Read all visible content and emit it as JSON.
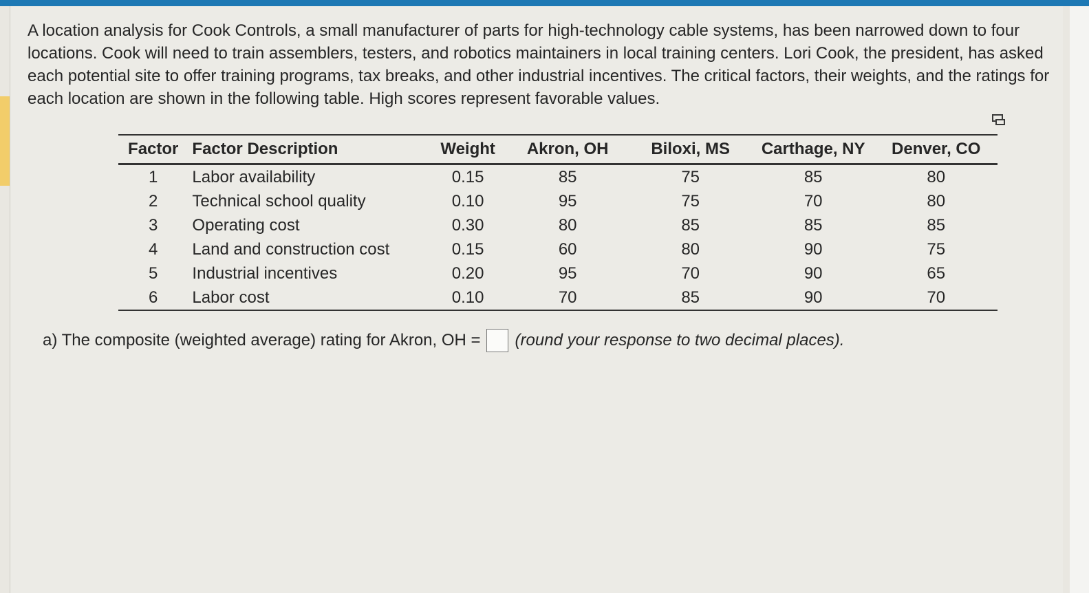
{
  "intro": "A location analysis for Cook Controls, a small manufacturer of parts for high-technology cable systems, has been narrowed down to four locations. Cook will need to train assemblers, testers, and robotics maintainers in local training centers. Lori Cook, the president, has asked each potential site to offer training programs, tax breaks, and other industrial incentives. The critical factors, their weights, and the ratings for each location are shown in the following table. High scores represent favorable values.",
  "table": {
    "headers": [
      "Factor",
      "Factor Description",
      "Weight",
      "Akron, OH",
      "Biloxi, MS",
      "Carthage, NY",
      "Denver, CO"
    ],
    "rows": [
      [
        "1",
        "Labor availability",
        "0.15",
        "85",
        "75",
        "85",
        "80"
      ],
      [
        "2",
        "Technical school quality",
        "0.10",
        "95",
        "75",
        "70",
        "80"
      ],
      [
        "3",
        "Operating cost",
        "0.30",
        "80",
        "85",
        "85",
        "85"
      ],
      [
        "4",
        "Land and construction cost",
        "0.15",
        "60",
        "80",
        "90",
        "75"
      ],
      [
        "5",
        "Industrial incentives",
        "0.20",
        "95",
        "70",
        "90",
        "65"
      ],
      [
        "6",
        "Labor cost",
        "0.10",
        "70",
        "85",
        "90",
        "70"
      ]
    ]
  },
  "question": {
    "prefix": "a) The composite (weighted average) rating for Akron, OH =",
    "answer_value": "",
    "note": "(round your response to two decimal places)."
  },
  "icons": {
    "expand": "expand-table-icon"
  },
  "colors": {
    "accent_bar": "#1d78b4",
    "left_highlight": "#f2cd6a"
  }
}
